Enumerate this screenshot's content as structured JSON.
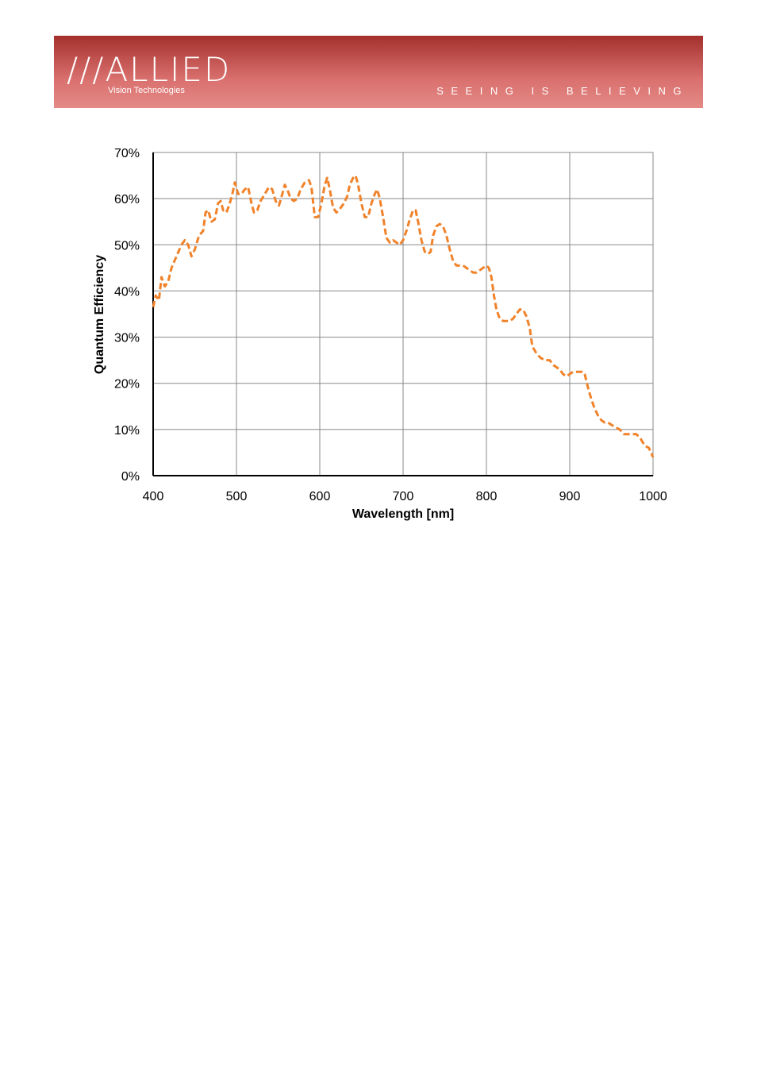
{
  "header": {
    "logo": "///ALLIED",
    "logo_sub": "Vision Technologies",
    "tagline": "SEEING IS BELIEVING"
  },
  "chart_data": {
    "type": "line",
    "x_label": "Wavelength [nm]",
    "y_label": "Quantum Efficiency",
    "color": "#f0822a",
    "dashed": true,
    "grid": true,
    "x": [
      400,
      403,
      407,
      410,
      414,
      418,
      422,
      428,
      434,
      438,
      442,
      446,
      450,
      455,
      460,
      463,
      466,
      470,
      474,
      478,
      481,
      484,
      488,
      492,
      495,
      498,
      502,
      506,
      510,
      514,
      518,
      521,
      525,
      529,
      534,
      539,
      543,
      547,
      551,
      555,
      558,
      561,
      565,
      569,
      573,
      577,
      582,
      587,
      590,
      594,
      598,
      602,
      606,
      609,
      612,
      616,
      620,
      625,
      629,
      633,
      636,
      640,
      643,
      646,
      650,
      654,
      658,
      662,
      666,
      669,
      672,
      676,
      680,
      684,
      688,
      692,
      696,
      700,
      704,
      708,
      712,
      715,
      718,
      722,
      726,
      730,
      733,
      736,
      740,
      744,
      748,
      752,
      756,
      760,
      764,
      768,
      772,
      776,
      780,
      784,
      788,
      792,
      796,
      800,
      803,
      806,
      809,
      812,
      816,
      820,
      824,
      828,
      832,
      836,
      840,
      844,
      848,
      852,
      855,
      860,
      865,
      870,
      876,
      880,
      884,
      888,
      892,
      896,
      900,
      904,
      910,
      915,
      918,
      922,
      926,
      930,
      934,
      938,
      942,
      946,
      950,
      955,
      960,
      965,
      970,
      975,
      980,
      985,
      990,
      995,
      1000
    ],
    "values": [
      36.5,
      39,
      38,
      43,
      41,
      42,
      45,
      47.5,
      50,
      51,
      50,
      47.5,
      49,
      52,
      53,
      57,
      57.5,
      55,
      55.5,
      59,
      59.5,
      57.5,
      57,
      59,
      61,
      63.5,
      61,
      61,
      62,
      62.5,
      59,
      57,
      57.5,
      59.5,
      61,
      62.5,
      62,
      59.5,
      58.5,
      61,
      63,
      62,
      60,
      59.5,
      60,
      62,
      63.5,
      64,
      62.5,
      56,
      56,
      59,
      63,
      64.5,
      62,
      58,
      57,
      58,
      59,
      60.5,
      63,
      64.5,
      65,
      63,
      59,
      56,
      56,
      59,
      61,
      62,
      60,
      56,
      51.5,
      50.5,
      51,
      50.5,
      50,
      51,
      53,
      55.5,
      57.5,
      57.5,
      55,
      51,
      48.5,
      48,
      48.5,
      52,
      54,
      54.5,
      54,
      52,
      49,
      46.5,
      45.5,
      45.5,
      45.5,
      45,
      44.5,
      44,
      44,
      44.5,
      45,
      45.5,
      45,
      43,
      39,
      36,
      34,
      33.5,
      33.5,
      33.5,
      34,
      35,
      36,
      36,
      34.5,
      32,
      28,
      26.5,
      25.5,
      25,
      25,
      24,
      23.5,
      23,
      22,
      21.5,
      22,
      22.5,
      22.5,
      22.5,
      22,
      19,
      16.5,
      14.5,
      13,
      12,
      11.5,
      11.5,
      11,
      10.5,
      10,
      9,
      9,
      9,
      9,
      8,
      6.5,
      6,
      4
    ],
    "xlim": [
      400,
      1000
    ],
    "xticks": [
      400,
      500,
      600,
      700,
      800,
      900,
      1000
    ],
    "ylim": [
      0,
      70
    ],
    "yticks": [
      {
        "value": 0,
        "label": "0%"
      },
      {
        "value": 10,
        "label": "10%"
      },
      {
        "value": 20,
        "label": "20%"
      },
      {
        "value": 30,
        "label": "30%"
      },
      {
        "value": 40,
        "label": "40%"
      },
      {
        "value": 50,
        "label": "50%"
      },
      {
        "value": 60,
        "label": "60%"
      },
      {
        "value": 70,
        "label": "70%"
      }
    ]
  }
}
